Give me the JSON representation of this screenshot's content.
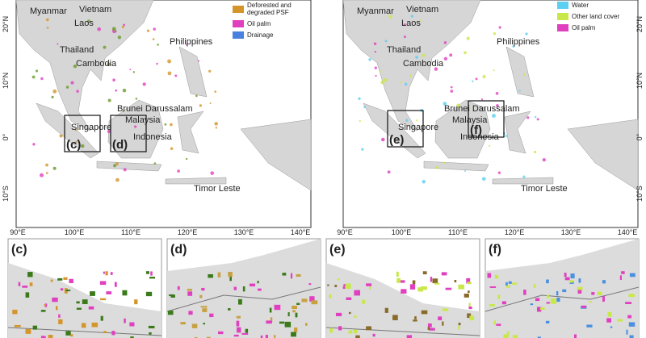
{
  "maps": [
    {
      "legend": [
        "Deforested and degraded PSF",
        "Oil palm",
        "Drainage"
      ],
      "countries": [
        "Myanmar",
        "Vietnam",
        "Laos",
        "Thailand",
        "Cambodia",
        "Philippines",
        "Brunei Darussalam",
        "Malaysia",
        "Singapore",
        "Indonesia",
        "Timor Leste"
      ],
      "insets": [
        "(c)",
        "(d)"
      ],
      "lat_labels": [
        "20°N",
        "10°N",
        "0°",
        "10°S"
      ],
      "lon_labels": [
        "90°E",
        "100°E",
        "110°E",
        "120°E",
        "130°E",
        "140°E"
      ]
    },
    {
      "legend": [
        "Water",
        "Other land cover",
        "Oil palm"
      ],
      "countries": [
        "Myanmar",
        "Vietnam",
        "Laos",
        "Thailand",
        "Cambodia",
        "Philippines",
        "Brunei Darussalam",
        "Malaysia",
        "Singapore",
        "Indonesia",
        "Timor Leste"
      ],
      "insets": [
        "(e)",
        "(f)"
      ],
      "lat_labels": [
        "20°N",
        "10°N",
        "0°",
        "10°S"
      ],
      "lon_labels": [
        "90°E",
        "100°E",
        "110°E",
        "120°E",
        "130°E",
        "140°E"
      ]
    }
  ],
  "panels": [
    "(c)",
    "(d)",
    "(e)",
    "(f)"
  ]
}
